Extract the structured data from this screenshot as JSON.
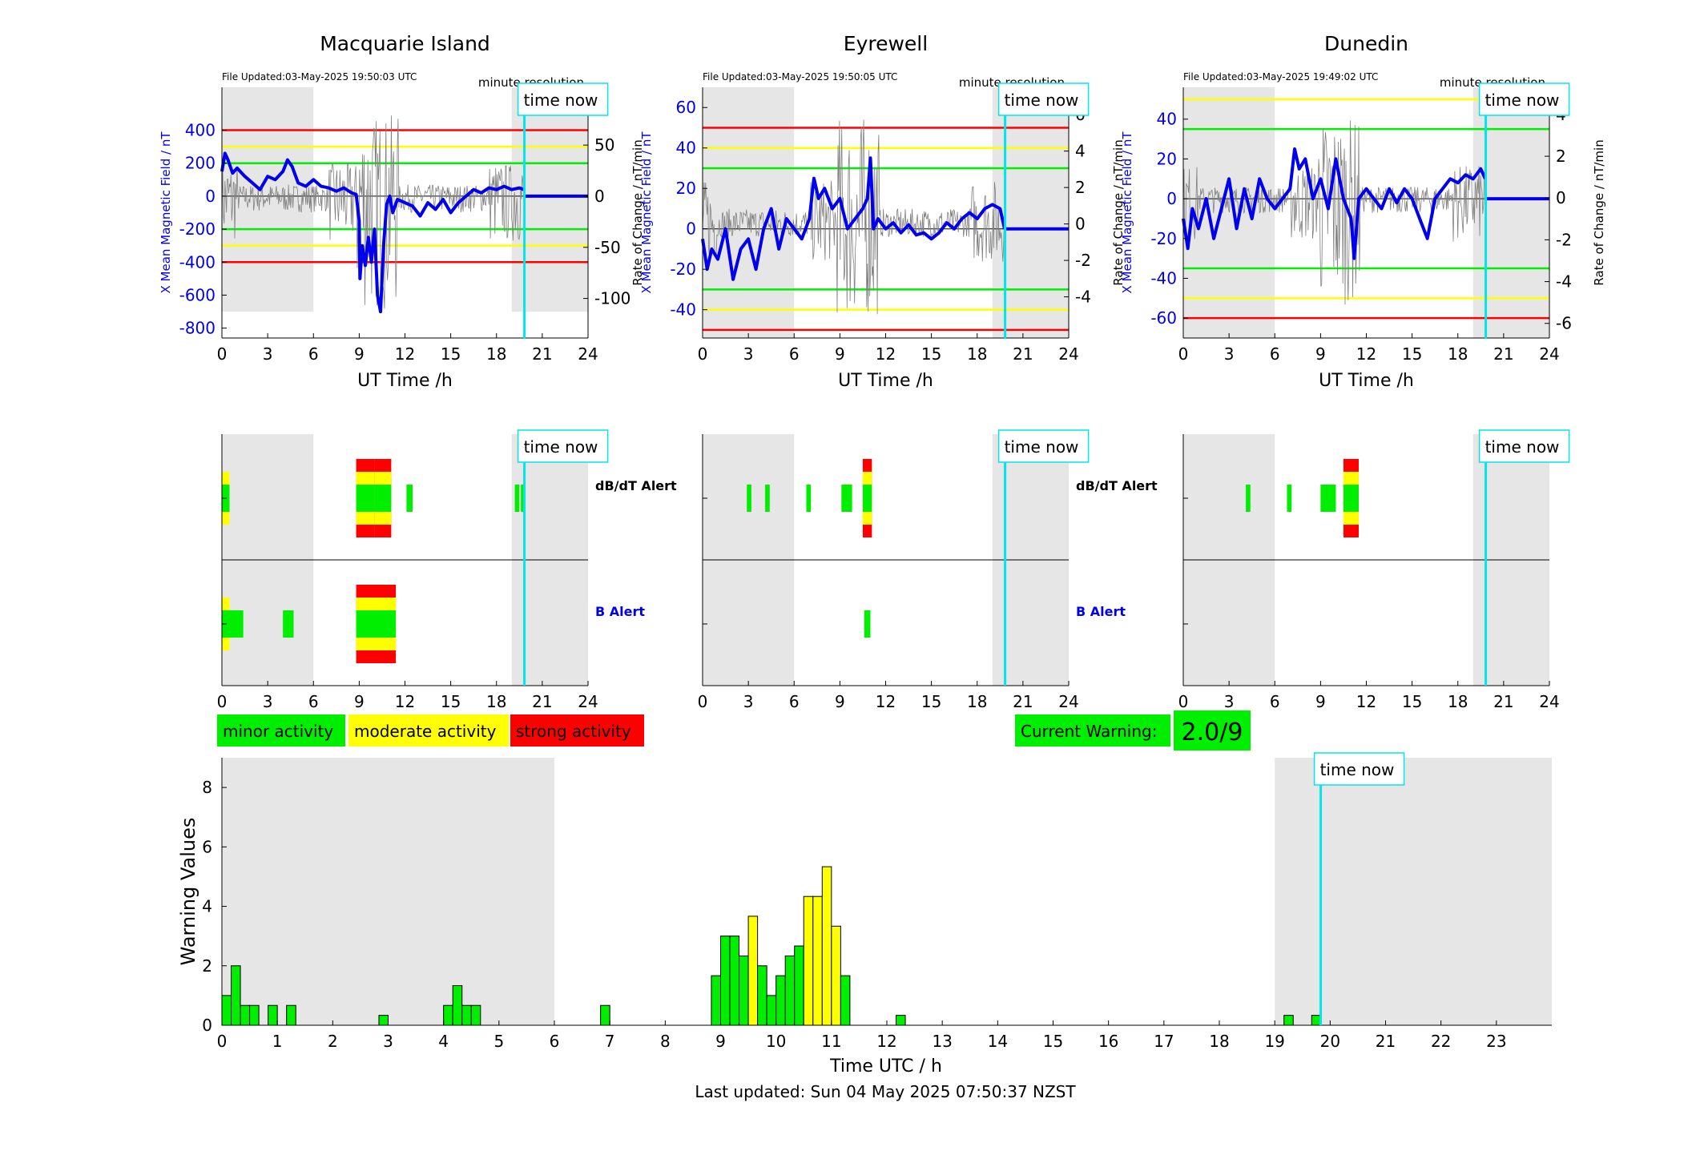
{
  "page": {
    "footer": "Last updated: Sun 04 May 2025 07:50:37 NZST"
  },
  "colors": {
    "minor": "#00ee00",
    "moderate": "#ffff00",
    "strong": "#ff0000",
    "field": "#0000ee",
    "now": "#00e5ee",
    "night": "#e6e6e6"
  },
  "legend": {
    "minor": "minor activity",
    "moderate": "moderate activity",
    "strong": "strong activity"
  },
  "current_warning": {
    "label": "Current Warning:",
    "value": "2.0/9"
  },
  "labels": {
    "minute_resolution": "minute resolution",
    "time_now": "time now",
    "dbdt_alert": "dB/dT Alert",
    "b_alert": "B Alert"
  },
  "chart_data": [
    {
      "type": "line",
      "panel": "magnetometer",
      "title": "Macquarie Island",
      "file_updated": "File Updated:03-May-2025 19:50:03 UTC",
      "xlabel": "UT Time /h",
      "ylabel": "X Mean Magnetic Field / nT",
      "ylabel_right": "Rate of Change / nT/min",
      "xlim": [
        0,
        24
      ],
      "xticks": [
        0,
        3,
        6,
        9,
        12,
        15,
        18,
        21,
        24
      ],
      "ylim": [
        -860,
        660
      ],
      "yticks": [
        -800,
        -600,
        -400,
        -200,
        0,
        200,
        400
      ],
      "ylim_right": [
        -138.7,
        106.5
      ],
      "yticks_right": [
        -100,
        -50,
        0,
        50
      ],
      "night_shading": [
        [
          0,
          6
        ],
        [
          19,
          24
        ]
      ],
      "night_shading_y": [
        -700,
        660
      ],
      "time_now": 19.83,
      "thresholds": [
        {
          "level": "strong",
          "values": [
            400,
            -400
          ]
        },
        {
          "level": "moderate",
          "values": [
            300,
            -300
          ]
        },
        {
          "level": "minor",
          "values": [
            200,
            -200
          ]
        }
      ],
      "field_x": [
        0,
        0.2,
        0.4,
        0.7,
        1,
        1.5,
        2,
        2.5,
        3,
        3.5,
        4,
        4.3,
        4.6,
        5,
        5.5,
        6,
        6.5,
        7,
        7.5,
        8,
        8.5,
        8.8,
        9,
        9.05,
        9.2,
        9.4,
        9.6,
        9.8,
        10,
        10.2,
        10.4,
        10.6,
        10.8,
        11,
        11.2,
        11.5,
        12,
        12.5,
        13,
        13.5,
        14,
        14.5,
        15,
        15.5,
        16,
        16.5,
        17,
        17.5,
        18,
        18.5,
        19,
        19.5,
        19.8
      ],
      "field_y": [
        150,
        260,
        220,
        140,
        170,
        120,
        80,
        40,
        120,
        100,
        150,
        220,
        180,
        80,
        60,
        100,
        60,
        50,
        30,
        50,
        20,
        10,
        -150,
        -500,
        -300,
        -420,
        -250,
        -400,
        -200,
        -600,
        -700,
        -300,
        -50,
        0,
        -100,
        -20,
        -40,
        -60,
        -120,
        -40,
        -80,
        -20,
        -100,
        -40,
        0,
        40,
        20,
        50,
        40,
        60,
        40,
        50,
        40
      ],
      "field_forecast": [
        [
          19.83,
          0
        ],
        [
          24,
          0
        ]
      ],
      "rate_range": [
        -132,
        94
      ]
    },
    {
      "type": "line",
      "panel": "magnetometer",
      "title": "Eyrewell",
      "file_updated": "File Updated:03-May-2025 19:50:05 UTC",
      "xlabel": "UT Time /h",
      "ylabel": "X Mean Magnetic Field / nT",
      "ylabel_right": "Rate of Change / nT/min",
      "xlim": [
        0,
        24
      ],
      "xticks": [
        0,
        3,
        6,
        9,
        12,
        15,
        18,
        21,
        24
      ],
      "ylim": [
        -54,
        70
      ],
      "yticks": [
        -40,
        -20,
        0,
        20,
        40,
        60
      ],
      "ylim_right": [
        -6.26,
        7.5
      ],
      "yticks_right": [
        -4,
        -2,
        0,
        2,
        4,
        6
      ],
      "night_shading": [
        [
          0,
          6
        ],
        [
          19,
          24
        ]
      ],
      "night_shading_y": [
        -54,
        70
      ],
      "time_now": 19.83,
      "thresholds": [
        {
          "level": "strong",
          "values": [
            50,
            -50
          ]
        },
        {
          "level": "moderate",
          "values": [
            40,
            -40
          ]
        },
        {
          "level": "minor",
          "values": [
            30,
            -30
          ]
        }
      ],
      "field_x": [
        0,
        0.3,
        0.6,
        1,
        1.5,
        2,
        2.5,
        3,
        3.5,
        4,
        4.5,
        5,
        5.5,
        6,
        6.5,
        7,
        7.3,
        7.6,
        8,
        8.5,
        9,
        9.5,
        10,
        10.5,
        10.8,
        11,
        11.2,
        11.5,
        12,
        12.5,
        13,
        13.5,
        14,
        14.5,
        15,
        15.5,
        16,
        16.5,
        17,
        17.5,
        18,
        18.5,
        19,
        19.5,
        19.8
      ],
      "field_y": [
        -5,
        -20,
        -10,
        -15,
        0,
        -25,
        -10,
        -5,
        -20,
        0,
        10,
        -10,
        5,
        0,
        -5,
        5,
        25,
        15,
        20,
        10,
        15,
        0,
        5,
        10,
        15,
        35,
        0,
        5,
        0,
        3,
        -2,
        2,
        -3,
        -2,
        -5,
        -2,
        3,
        0,
        5,
        8,
        5,
        10,
        12,
        10,
        0
      ],
      "field_forecast": [
        [
          19.83,
          0
        ],
        [
          24,
          0
        ]
      ],
      "rate_range": [
        -6,
        7
      ]
    },
    {
      "type": "line",
      "panel": "magnetometer",
      "title": "Dunedin",
      "file_updated": "File Updated:03-May-2025 19:49:02 UTC",
      "xlabel": "UT Time /h",
      "ylabel": "X Mean Magnetic Field / nT",
      "ylabel_right": "Rate of Change / nT/min",
      "xlim": [
        0,
        24
      ],
      "xticks": [
        0,
        3,
        6,
        9,
        12,
        15,
        18,
        21,
        24
      ],
      "ylim": [
        -70,
        56
      ],
      "yticks": [
        -60,
        -40,
        -20,
        0,
        20,
        40
      ],
      "ylim_right": [
        -6.7,
        5.3
      ],
      "yticks_right": [
        -6,
        -4,
        -2,
        0,
        2,
        4
      ],
      "night_shading": [
        [
          0,
          6
        ],
        [
          19,
          24
        ]
      ],
      "night_shading_y": [
        -70,
        56
      ],
      "time_now": 19.83,
      "thresholds": [
        {
          "level": "moderate",
          "values": [
            50,
            -50
          ]
        },
        {
          "level": "minor",
          "values": [
            35,
            -35
          ]
        },
        {
          "level": "strong",
          "values": [
            -60
          ]
        }
      ],
      "field_x": [
        0,
        0.3,
        0.6,
        1,
        1.5,
        2,
        2.5,
        3,
        3.5,
        4,
        4.5,
        5,
        5.5,
        6,
        6.5,
        7,
        7.3,
        7.6,
        8,
        8.5,
        9,
        9.5,
        10,
        10.5,
        11,
        11.2,
        11.5,
        12,
        12.5,
        13,
        13.5,
        14,
        14.5,
        15,
        15.5,
        16,
        16.5,
        17,
        17.5,
        18,
        18.5,
        19,
        19.5,
        19.8
      ],
      "field_y": [
        -10,
        -25,
        -5,
        -15,
        0,
        -20,
        -5,
        10,
        -15,
        5,
        -10,
        10,
        0,
        -5,
        0,
        5,
        25,
        15,
        20,
        0,
        10,
        -5,
        20,
        0,
        -10,
        -30,
        0,
        5,
        0,
        -5,
        5,
        -2,
        5,
        0,
        -10,
        -20,
        0,
        5,
        10,
        8,
        12,
        10,
        15,
        10
      ],
      "field_forecast": [
        [
          19.83,
          0
        ],
        [
          24,
          0
        ]
      ],
      "rate_range": [
        -6,
        4.5
      ]
    },
    {
      "type": "timeline",
      "panel": "alerts",
      "title": "Macquarie Island",
      "xlim": [
        0,
        24
      ],
      "xticks": [
        0,
        3,
        6,
        9,
        12,
        15,
        18,
        21,
        24
      ],
      "night_shading": [
        [
          0,
          6
        ],
        [
          19,
          24
        ]
      ],
      "time_now": 19.83,
      "dbdt_alert": [
        {
          "start": 0,
          "end": 0.5,
          "level": "moderate"
        },
        {
          "start": 8.8,
          "end": 10,
          "level": "strong"
        },
        {
          "start": 10,
          "end": 11.1,
          "level": "strong"
        },
        {
          "start": 12.1,
          "end": 12.5,
          "level": "minor"
        },
        {
          "start": 19.2,
          "end": 19.5,
          "level": "minor"
        },
        {
          "start": 19.6,
          "end": 19.85,
          "level": "minor"
        }
      ],
      "b_alert": [
        {
          "start": 0,
          "end": 0.5,
          "level": "moderate"
        },
        {
          "start": 0.5,
          "end": 1.4,
          "level": "minor"
        },
        {
          "start": 4,
          "end": 4.7,
          "level": "minor"
        },
        {
          "start": 8.8,
          "end": 11.4,
          "level": "strong"
        }
      ]
    },
    {
      "type": "timeline",
      "panel": "alerts",
      "title": "Eyrewell",
      "xlim": [
        0,
        24
      ],
      "xticks": [
        0,
        3,
        6,
        9,
        12,
        15,
        18,
        21,
        24
      ],
      "night_shading": [
        [
          0,
          6
        ],
        [
          19,
          24
        ]
      ],
      "time_now": 19.83,
      "dbdt_alert": [
        {
          "start": 2.9,
          "end": 3.2,
          "level": "minor"
        },
        {
          "start": 4.1,
          "end": 4.4,
          "level": "minor"
        },
        {
          "start": 6.8,
          "end": 7.1,
          "level": "minor"
        },
        {
          "start": 9.1,
          "end": 9.8,
          "level": "minor"
        },
        {
          "start": 10.5,
          "end": 11.1,
          "level": "strong"
        }
      ],
      "b_alert": [
        {
          "start": 10.6,
          "end": 11,
          "level": "minor"
        }
      ]
    },
    {
      "type": "timeline",
      "panel": "alerts",
      "title": "Dunedin",
      "xlim": [
        0,
        24
      ],
      "xticks": [
        0,
        3,
        6,
        9,
        12,
        15,
        18,
        21,
        24
      ],
      "night_shading": [
        [
          0,
          6
        ],
        [
          19,
          24
        ]
      ],
      "time_now": 19.83,
      "dbdt_alert": [
        {
          "start": 4.1,
          "end": 4.4,
          "level": "minor"
        },
        {
          "start": 6.8,
          "end": 7.1,
          "level": "minor"
        },
        {
          "start": 9,
          "end": 10,
          "level": "minor"
        },
        {
          "start": 10.5,
          "end": 11.5,
          "level": "strong"
        }
      ],
      "b_alert": []
    },
    {
      "type": "bar",
      "panel": "warnings",
      "xlabel": "Time UTC / h",
      "ylabel": "Warning Values",
      "xlim": [
        0,
        24
      ],
      "xticks": [
        0,
        1,
        2,
        3,
        4,
        5,
        6,
        7,
        8,
        9,
        10,
        11,
        12,
        13,
        14,
        15,
        16,
        17,
        18,
        19,
        20,
        21,
        22,
        23
      ],
      "ylim": [
        0,
        9
      ],
      "yticks": [
        0,
        2,
        4,
        6,
        8
      ],
      "night_shading": [
        [
          0,
          6
        ],
        [
          19,
          24
        ]
      ],
      "time_now": 19.83,
      "bar_width": 0.1667,
      "bars": [
        {
          "x": 0,
          "value": 1,
          "level": "minor"
        },
        {
          "x": 0.1667,
          "value": 2,
          "level": "minor"
        },
        {
          "x": 0.3333,
          "value": 0.667,
          "level": "minor"
        },
        {
          "x": 0.5,
          "value": 0.667,
          "level": "minor"
        },
        {
          "x": 0.8333,
          "value": 0.667,
          "level": "minor"
        },
        {
          "x": 1.1667,
          "value": 0.667,
          "level": "minor"
        },
        {
          "x": 2.8333,
          "value": 0.333,
          "level": "minor"
        },
        {
          "x": 4,
          "value": 0.667,
          "level": "minor"
        },
        {
          "x": 4.1667,
          "value": 1.333,
          "level": "minor"
        },
        {
          "x": 4.3333,
          "value": 0.667,
          "level": "minor"
        },
        {
          "x": 4.5,
          "value": 0.667,
          "level": "minor"
        },
        {
          "x": 6.8333,
          "value": 0.667,
          "level": "minor"
        },
        {
          "x": 8.8333,
          "value": 1.667,
          "level": "minor"
        },
        {
          "x": 9,
          "value": 3,
          "level": "minor"
        },
        {
          "x": 9.1667,
          "value": 3,
          "level": "minor"
        },
        {
          "x": 9.3333,
          "value": 2.333,
          "level": "minor"
        },
        {
          "x": 9.5,
          "value": 3.667,
          "level": "moderate"
        },
        {
          "x": 9.6667,
          "value": 2,
          "level": "minor"
        },
        {
          "x": 9.8333,
          "value": 1,
          "level": "minor"
        },
        {
          "x": 10,
          "value": 1.667,
          "level": "minor"
        },
        {
          "x": 10.1667,
          "value": 2.333,
          "level": "minor"
        },
        {
          "x": 10.3333,
          "value": 2.667,
          "level": "minor"
        },
        {
          "x": 10.5,
          "value": 4.333,
          "level": "moderate"
        },
        {
          "x": 10.6667,
          "value": 4.333,
          "level": "moderate"
        },
        {
          "x": 10.8333,
          "value": 5.333,
          "level": "moderate"
        },
        {
          "x": 11,
          "value": 3.333,
          "level": "moderate"
        },
        {
          "x": 11.1667,
          "value": 1.667,
          "level": "minor"
        },
        {
          "x": 12.1667,
          "value": 0.333,
          "level": "minor"
        },
        {
          "x": 19.1667,
          "value": 0.333,
          "level": "minor"
        },
        {
          "x": 19.6667,
          "value": 0.333,
          "level": "minor"
        }
      ]
    }
  ]
}
